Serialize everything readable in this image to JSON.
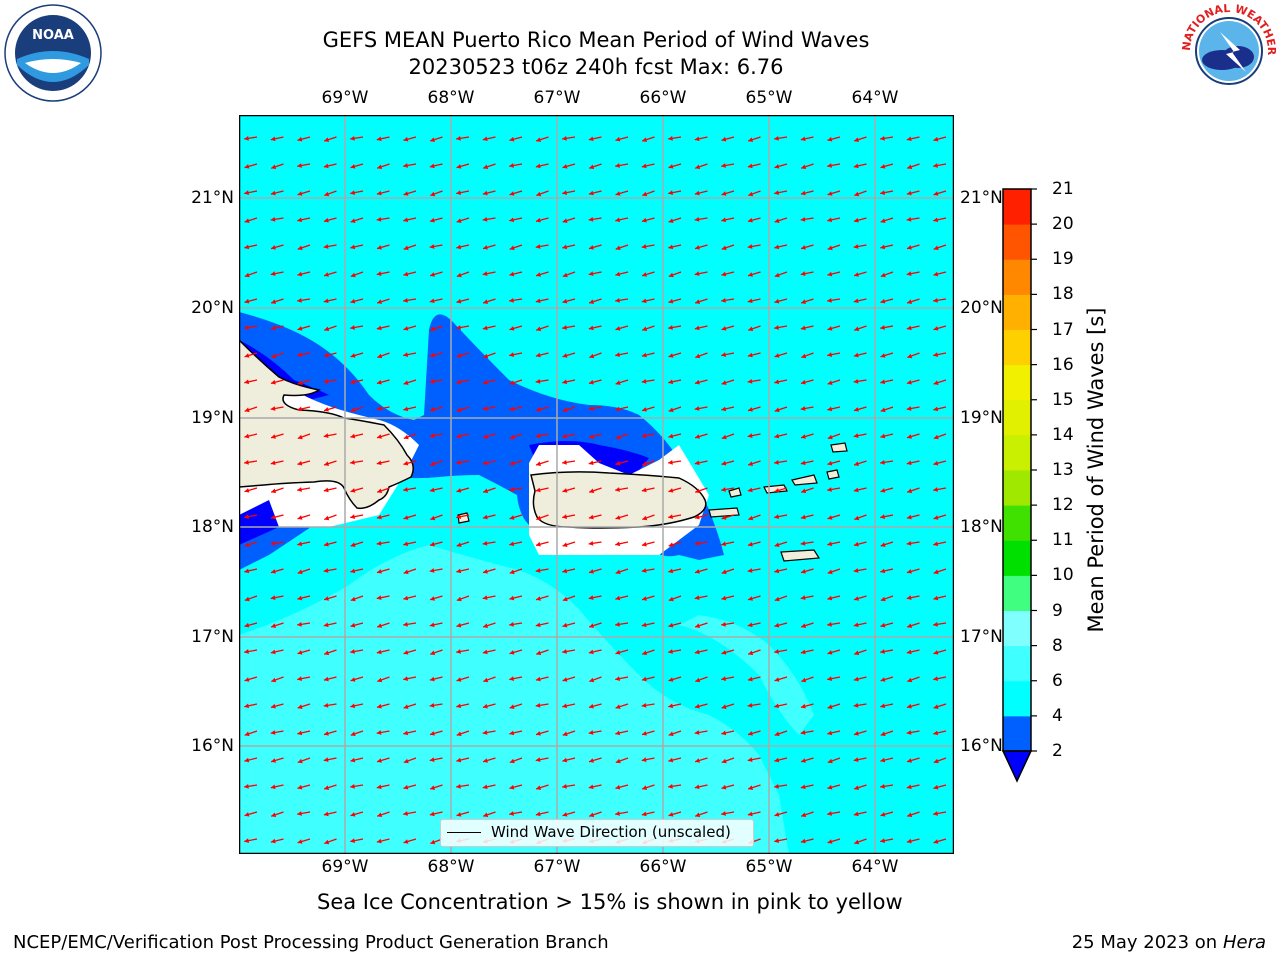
{
  "header": {
    "title_line1": "GEFS MEAN Puerto Rico Mean Period of Wind Waves",
    "title_line2": "20230523 t06z 240h fcst   Max: 6.76"
  },
  "logos": {
    "noaa_text": "NOAA",
    "nws_text": "NATIONAL WEATHER SERVICE"
  },
  "map": {
    "lon_ticks": [
      "69°W",
      "68°W",
      "67°W",
      "66°W",
      "65°W",
      "64°W"
    ],
    "lat_ticks": [
      "21°N",
      "20°N",
      "19°N",
      "18°N",
      "17°N",
      "16°N"
    ],
    "legend_label": "Wind Wave Direction (unscaled)",
    "ocean_color": "#00ffff",
    "land_color": "#efeddc",
    "arrow_color": "#ff0000"
  },
  "colorbar": {
    "title": "Mean Period of Wind Waves [s]",
    "levels": [
      "2",
      "4",
      "6",
      "8",
      "9",
      "10",
      "11",
      "12",
      "13",
      "14",
      "15",
      "16",
      "17",
      "18",
      "19",
      "20",
      "21"
    ],
    "colors": [
      "#0060ff",
      "#00ffff",
      "#40ffff",
      "#80ffff",
      "#40ff80",
      "#00e000",
      "#40e000",
      "#a0e800",
      "#c8f000",
      "#e0f000",
      "#f0f000",
      "#ffd000",
      "#ffb000",
      "#ff8800",
      "#ff5500",
      "#ff2000"
    ],
    "under_color": "#0000ff"
  },
  "footer": {
    "sea_ice_note": "Sea Ice Concentration > 15% is shown in pink to yellow",
    "branch": "NCEP/EMC/Verification Post Processing Product Generation Branch",
    "date": "25 May 2023 on",
    "machine": "Hera"
  }
}
